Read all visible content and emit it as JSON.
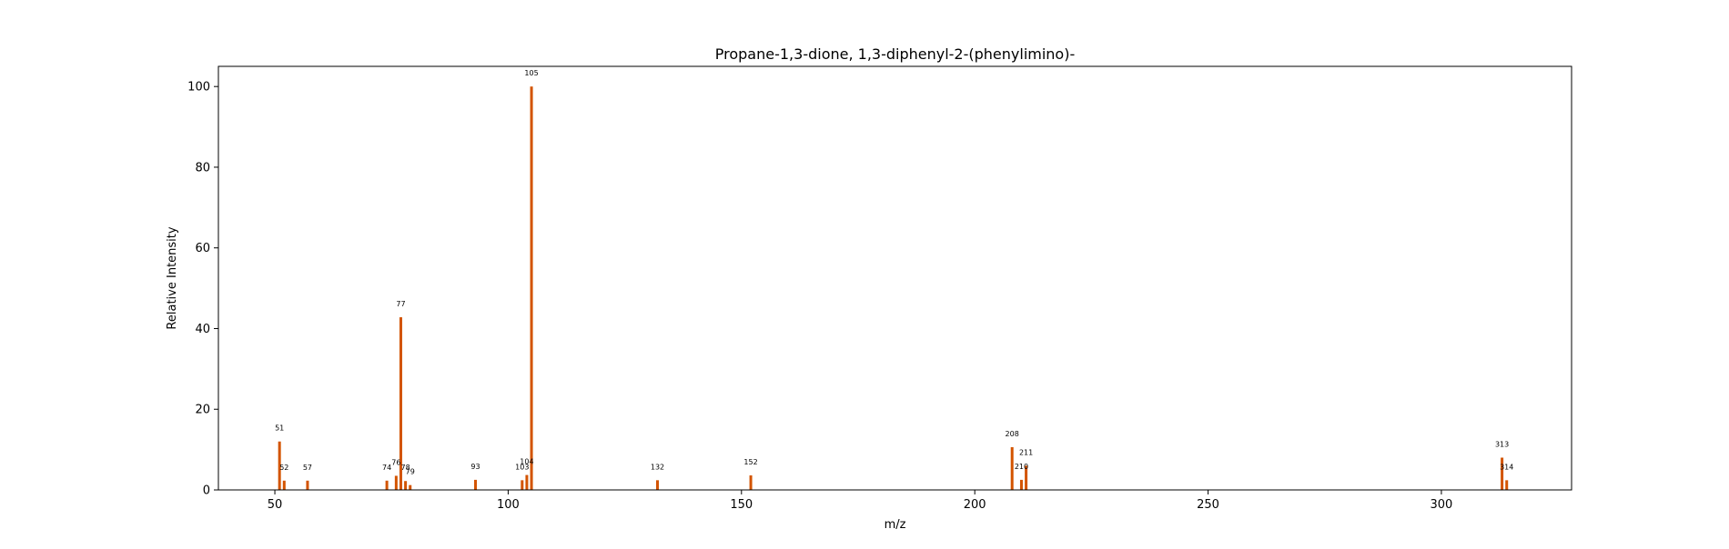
{
  "chart_data": {
    "type": "bar",
    "title": "Propane-1,3-dione, 1,3-diphenyl-2-(phenylimino)-",
    "xlabel": "m/z",
    "ylabel": "Relative Intensity",
    "xlim": [
      37.9,
      327.9
    ],
    "ylim": [
      0,
      105
    ],
    "xticks": [
      50,
      100,
      150,
      200,
      250,
      300
    ],
    "yticks": [
      0,
      20,
      40,
      60,
      80,
      100
    ],
    "grid": false,
    "bar_color": "#d35400",
    "series": [
      {
        "x": [
          51,
          52,
          57,
          74,
          76,
          77,
          78,
          79,
          93,
          103,
          104,
          105,
          132,
          152,
          208,
          210,
          211,
          313,
          314
        ],
        "values": [
          12.0,
          2.3,
          2.3,
          2.3,
          3.5,
          42.8,
          2.2,
          1.2,
          2.5,
          2.4,
          3.7,
          100.0,
          2.4,
          3.6,
          10.6,
          2.5,
          6.0,
          8.0,
          2.4
        ]
      }
    ],
    "peak_labels": [
      "51",
      "52",
      "57",
      "74",
      "76",
      "77",
      "78",
      "79",
      "93",
      "103",
      "104",
      "105",
      "132",
      "152",
      "208",
      "210",
      "211",
      "313",
      "314"
    ]
  }
}
